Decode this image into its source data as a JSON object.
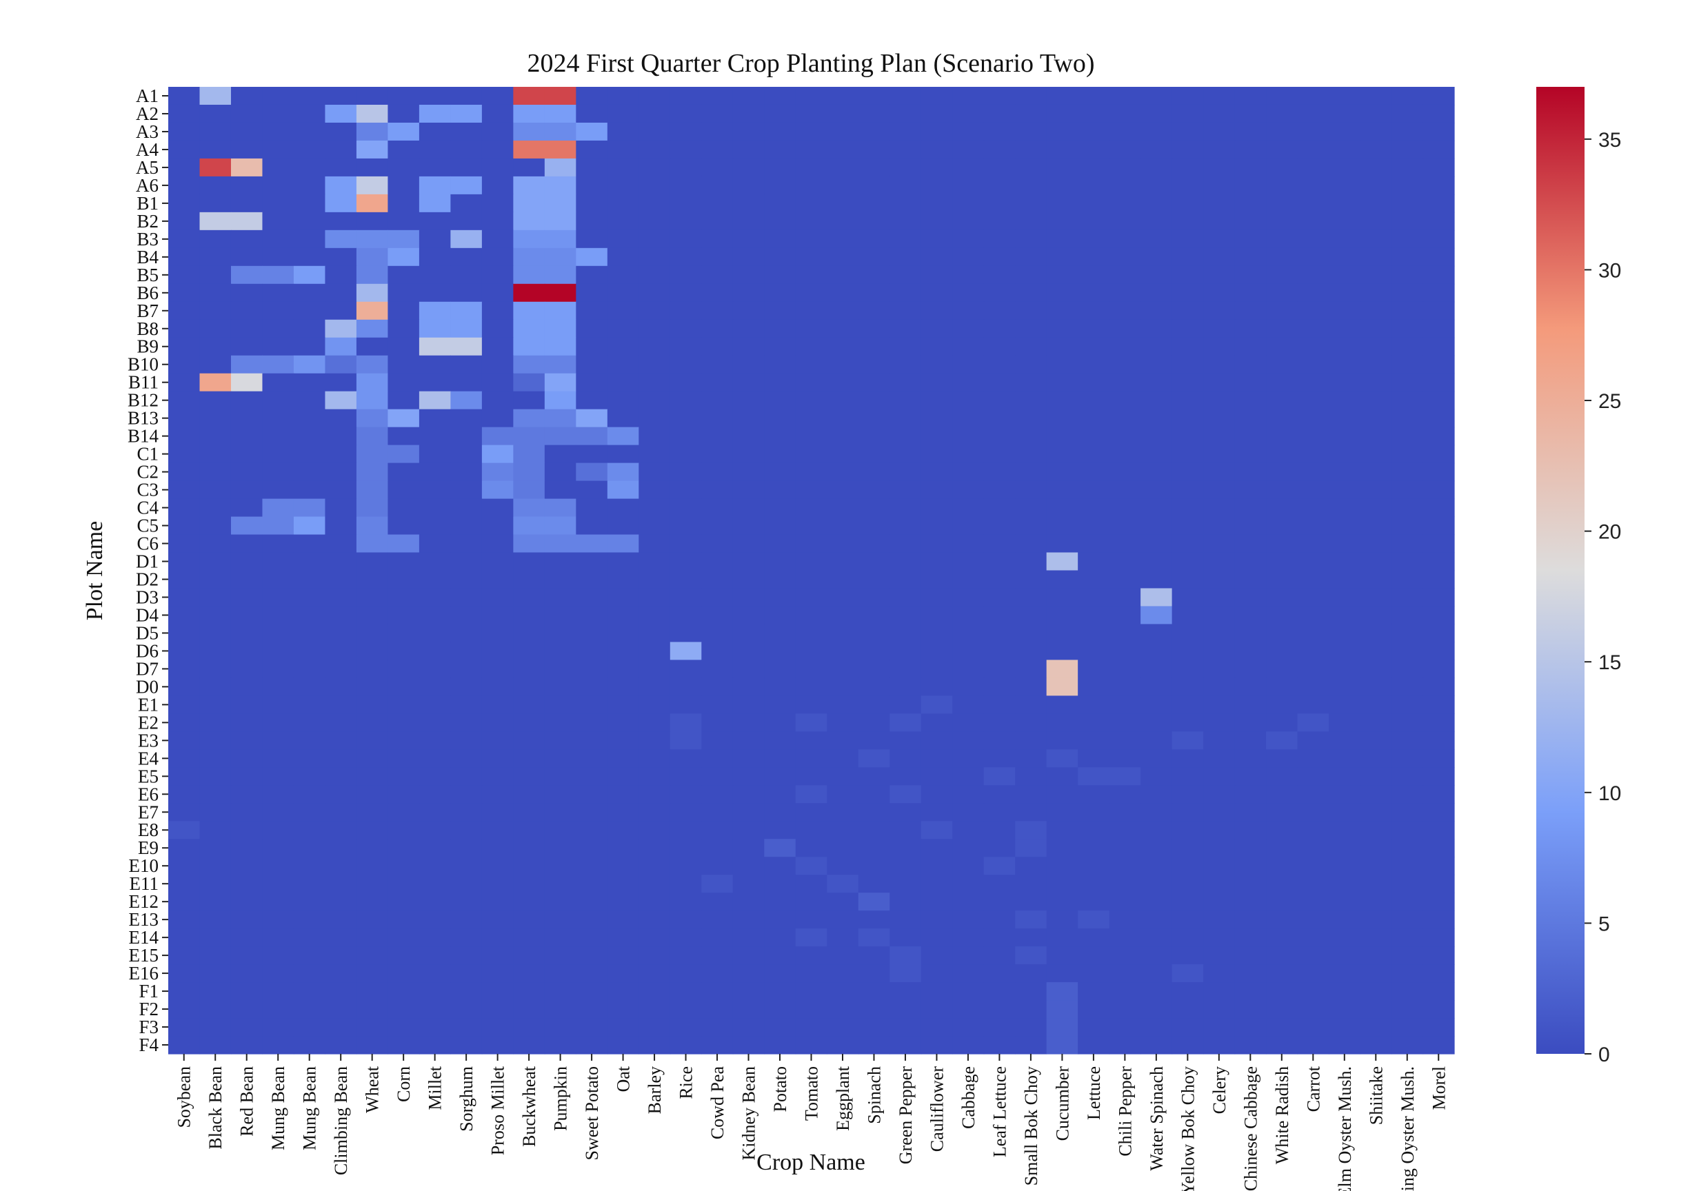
{
  "chart_data": {
    "type": "heatmap",
    "title": "2024 First Quarter Crop Planting Plan (Scenario Two)",
    "xlabel": "Crop Name",
    "ylabel": "Plot Name",
    "colormap": "coolwarm",
    "vmin": 0,
    "vmax": 37,
    "colorbar_ticks": [
      0,
      5,
      10,
      15,
      20,
      25,
      30,
      35
    ],
    "rows": [
      "A1",
      "A2",
      "A3",
      "A4",
      "A5",
      "A6",
      "B1",
      "B2",
      "B3",
      "B4",
      "B5",
      "B6",
      "B7",
      "B8",
      "B9",
      "B10",
      "B11",
      "B12",
      "B13",
      "B14",
      "C1",
      "C2",
      "C3",
      "C4",
      "C5",
      "C6",
      "D1",
      "D2",
      "D3",
      "D4",
      "D5",
      "D6",
      "D7",
      "D0",
      "E1",
      "E2",
      "E3",
      "E4",
      "E5",
      "E6",
      "E7",
      "E8",
      "E9",
      "E10",
      "E11",
      "E12",
      "E13",
      "E14",
      "E15",
      "E16",
      "F1",
      "F2",
      "F3",
      "F4"
    ],
    "columns": [
      "Soybean",
      "Black Bean",
      "Red Bean",
      "Mung Bean",
      "Mung Bean",
      "Climbing Bean",
      "Wheat",
      "Corn",
      "Millet",
      "Sorghum",
      "Proso Millet",
      "Buckwheat",
      "Pumpkin",
      "Sweet Potato",
      "Oat",
      "Barley",
      "Rice",
      "Cowd Pea",
      "Kidney Bean",
      "Potato",
      "Tomato",
      "Eggplant",
      "Spinach",
      "Green Pepper",
      "Cauliflower",
      "Cabbage",
      "Leaf Lettuce",
      "Small Bok Choy",
      "Cucumber",
      "Lettuce",
      "Chili Pepper",
      "Water Spinach",
      "Yellow Bok Choy",
      "Celery",
      "Chinese Cabbage",
      "White Radish",
      "Carrot",
      "Elm Oyster Mush.",
      "Shiitake",
      "King Oyster Mush.",
      "Morel"
    ],
    "default_value": 0,
    "nonzero_cells_row_col_value": [
      [
        "A1",
        "Black Bean",
        13
      ],
      [
        "A1",
        "Buckwheat",
        33
      ],
      [
        "A1",
        "Pumpkin",
        33
      ],
      [
        "A2",
        "Climbing Bean",
        9
      ],
      [
        "A2",
        "Wheat",
        15
      ],
      [
        "A2",
        "Millet",
        9
      ],
      [
        "A2",
        "Sorghum",
        9
      ],
      [
        "A2",
        "Buckwheat",
        9
      ],
      [
        "A2",
        "Pumpkin",
        9
      ],
      [
        "A3",
        "Wheat",
        6
      ],
      [
        "A3",
        "Corn",
        9
      ],
      [
        "A3",
        "Buckwheat",
        7
      ],
      [
        "A3",
        "Pumpkin",
        7
      ],
      [
        "A3",
        "Sweet Potato",
        9
      ],
      [
        "A4",
        "Wheat",
        10
      ],
      [
        "A4",
        "Buckwheat",
        30
      ],
      [
        "A4",
        "Pumpkin",
        30
      ],
      [
        "A5",
        "Black Bean",
        33
      ],
      [
        "A5",
        "Red Bean",
        23
      ],
      [
        "A5",
        "Pumpkin",
        12
      ],
      [
        "A6",
        "Climbing Bean",
        9
      ],
      [
        "A6",
        "Wheat",
        16
      ],
      [
        "A6",
        "Millet",
        9
      ],
      [
        "A6",
        "Sorghum",
        9
      ],
      [
        "A6",
        "Buckwheat",
        10
      ],
      [
        "A6",
        "Pumpkin",
        10
      ],
      [
        "B1",
        "Climbing Bean",
        9
      ],
      [
        "B1",
        "Wheat",
        26
      ],
      [
        "B1",
        "Millet",
        9
      ],
      [
        "B1",
        "Buckwheat",
        10
      ],
      [
        "B1",
        "Pumpkin",
        10
      ],
      [
        "B2",
        "Black Bean",
        16
      ],
      [
        "B2",
        "Red Bean",
        16
      ],
      [
        "B2",
        "Buckwheat",
        10
      ],
      [
        "B2",
        "Pumpkin",
        10
      ],
      [
        "B3",
        "Climbing Bean",
        7
      ],
      [
        "B3",
        "Wheat",
        7
      ],
      [
        "B3",
        "Corn",
        7
      ],
      [
        "B3",
        "Sorghum",
        12
      ],
      [
        "B3",
        "Buckwheat",
        8
      ],
      [
        "B3",
        "Pumpkin",
        8
      ],
      [
        "B4",
        "Wheat",
        6
      ],
      [
        "B4",
        "Corn",
        9
      ],
      [
        "B4",
        "Buckwheat",
        7
      ],
      [
        "B4",
        "Pumpkin",
        7
      ],
      [
        "B4",
        "Sweet Potato",
        9
      ],
      [
        "B5",
        "Red Bean",
        6
      ],
      [
        "B5",
        3,
        6
      ],
      [
        "B5",
        4,
        9
      ],
      [
        "B5",
        "Wheat",
        6
      ],
      [
        "B5",
        "Buckwheat",
        7
      ],
      [
        "B5",
        "Pumpkin",
        7
      ],
      [
        "B6",
        "Wheat",
        13
      ],
      [
        "B6",
        "Buckwheat",
        37
      ],
      [
        "B6",
        "Pumpkin",
        37
      ],
      [
        "B7",
        "Wheat",
        25
      ],
      [
        "B7",
        "Millet",
        9
      ],
      [
        "B7",
        "Sorghum",
        9
      ],
      [
        "B7",
        "Buckwheat",
        9
      ],
      [
        "B7",
        "Pumpkin",
        9
      ],
      [
        "B8",
        "Climbing Bean",
        13
      ],
      [
        "B8",
        "Wheat",
        7
      ],
      [
        "B8",
        "Millet",
        9
      ],
      [
        "B8",
        "Sorghum",
        9
      ],
      [
        "B8",
        "Buckwheat",
        9
      ],
      [
        "B8",
        "Pumpkin",
        9
      ],
      [
        "B9",
        "Climbing Bean",
        8
      ],
      [
        "B9",
        "Millet",
        16
      ],
      [
        "B9",
        "Sorghum",
        16
      ],
      [
        "B9",
        "Buckwheat",
        9
      ],
      [
        "B9",
        "Pumpkin",
        9
      ],
      [
        "B10",
        "Red Bean",
        6
      ],
      [
        "B10",
        3,
        6
      ],
      [
        "B10",
        4,
        8
      ],
      [
        "B10",
        "Climbing Bean",
        4
      ],
      [
        "B10",
        "Wheat",
        6
      ],
      [
        "B10",
        "Buckwheat",
        6
      ],
      [
        "B10",
        "Pumpkin",
        6
      ],
      [
        "B11",
        "Black Bean",
        26
      ],
      [
        "B11",
        "Red Bean",
        18
      ],
      [
        "B11",
        "Wheat",
        8
      ],
      [
        "B11",
        "Buckwheat",
        3
      ],
      [
        "B11",
        "Pumpkin",
        10
      ],
      [
        "B12",
        "Climbing Bean",
        13
      ],
      [
        "B12",
        "Wheat",
        8
      ],
      [
        "B12",
        "Millet",
        14
      ],
      [
        "B12",
        "Sorghum",
        7
      ],
      [
        "B12",
        "Pumpkin",
        9
      ],
      [
        "B13",
        "Wheat",
        6
      ],
      [
        "B13",
        "Corn",
        10
      ],
      [
        "B13",
        "Buckwheat",
        6
      ],
      [
        "B13",
        "Pumpkin",
        6
      ],
      [
        "B13",
        "Sweet Potato",
        10
      ],
      [
        "B14",
        "Wheat",
        5
      ],
      [
        "B14",
        "Proso Millet",
        5
      ],
      [
        "B14",
        "Buckwheat",
        5
      ],
      [
        "B14",
        "Pumpkin",
        5
      ],
      [
        "B14",
        "Sweet Potato",
        5
      ],
      [
        "B14",
        "Oat",
        7
      ],
      [
        "C1",
        "Wheat",
        5
      ],
      [
        "C1",
        "Corn",
        5
      ],
      [
        "C1",
        "Proso Millet",
        9
      ],
      [
        "C1",
        "Buckwheat",
        5
      ],
      [
        "C2",
        "Wheat",
        5
      ],
      [
        "C2",
        "Proso Millet",
        6
      ],
      [
        "C2",
        "Buckwheat",
        5
      ],
      [
        "C2",
        "Sweet Potato",
        4
      ],
      [
        "C2",
        "Oat",
        7
      ],
      [
        "C3",
        "Wheat",
        5
      ],
      [
        "C3",
        "Proso Millet",
        7
      ],
      [
        "C3",
        "Buckwheat",
        5
      ],
      [
        "C3",
        "Oat",
        8
      ],
      [
        "C4",
        3,
        6
      ],
      [
        "C4",
        4,
        6
      ],
      [
        "C4",
        "Wheat",
        5
      ],
      [
        "C4",
        "Buckwheat",
        6
      ],
      [
        "C4",
        "Pumpkin",
        6
      ],
      [
        "C5",
        "Red Bean",
        6
      ],
      [
        "C5",
        3,
        6
      ],
      [
        "C5",
        4,
        9
      ],
      [
        "C5",
        "Wheat",
        6
      ],
      [
        "C5",
        "Buckwheat",
        7
      ],
      [
        "C5",
        "Pumpkin",
        7
      ],
      [
        "C6",
        "Wheat",
        6
      ],
      [
        "C6",
        "Corn",
        6
      ],
      [
        "C6",
        "Buckwheat",
        6
      ],
      [
        "C6",
        "Pumpkin",
        6
      ],
      [
        "C6",
        "Sweet Potato",
        6
      ],
      [
        "C6",
        "Oat",
        6
      ],
      [
        "D1",
        "Cucumber",
        14
      ],
      [
        "D3",
        "Water Spinach",
        14
      ],
      [
        "D4",
        "Water Spinach",
        7
      ],
      [
        "D6",
        "Rice",
        11
      ],
      [
        "D7",
        "Cucumber",
        22
      ],
      [
        "D0",
        "Cucumber",
        22
      ],
      [
        "E1",
        "Cauliflower",
        1
      ],
      [
        "E2",
        "Rice",
        1
      ],
      [
        "E2",
        "Tomato",
        1
      ],
      [
        "E2",
        "Green Pepper",
        1
      ],
      [
        "E2",
        "Carrot",
        1
      ],
      [
        "E3",
        "Rice",
        1
      ],
      [
        "E3",
        "Yellow Bok Choy",
        1
      ],
      [
        "E3",
        "White Radish",
        1
      ],
      [
        "E4",
        "Spinach",
        1
      ],
      [
        "E4",
        "Cucumber",
        1
      ],
      [
        "E5",
        "Leaf Lettuce",
        1
      ],
      [
        "E5",
        "Lettuce",
        1
      ],
      [
        "E5",
        "Chili Pepper",
        1
      ],
      [
        "E6",
        "Tomato",
        1
      ],
      [
        "E6",
        "Green Pepper",
        1
      ],
      [
        "E8",
        "Soybean",
        1
      ],
      [
        "E8",
        "Cauliflower",
        1
      ],
      [
        "E8",
        "Small Bok Choy",
        1
      ],
      [
        "E9",
        "Potato",
        2
      ],
      [
        "E9",
        "Small Bok Choy",
        1
      ],
      [
        "E10",
        "Tomato",
        1
      ],
      [
        "E10",
        "Leaf Lettuce",
        1
      ],
      [
        "E11",
        "Cowd Pea",
        1
      ],
      [
        "E11",
        "Eggplant",
        1
      ],
      [
        "E12",
        "Spinach",
        2
      ],
      [
        "E13",
        "Lettuce",
        1
      ],
      [
        "E13",
        "Small Bok Choy",
        1
      ],
      [
        "E14",
        "Tomato",
        1
      ],
      [
        "E14",
        "Spinach",
        1
      ],
      [
        "E15",
        "Green Pepper",
        1
      ],
      [
        "E15",
        "Small Bok Choy",
        1
      ],
      [
        "E16",
        "Green Pepper",
        1
      ],
      [
        "E16",
        "Yellow Bok Choy",
        1
      ],
      [
        "F1",
        "Cucumber",
        2
      ],
      [
        "F2",
        "Cucumber",
        2
      ],
      [
        "F3",
        "Cucumber",
        2
      ],
      [
        "F4",
        "Cucumber",
        2
      ]
    ]
  }
}
